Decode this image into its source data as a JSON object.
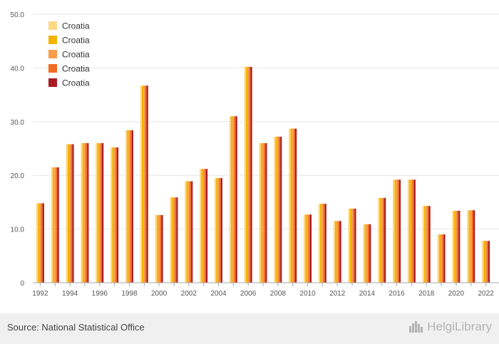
{
  "chart_data": {
    "type": "bar",
    "categories": [
      "1992",
      "1993",
      "1994",
      "1995",
      "1996",
      "1997",
      "1998",
      "1999",
      "2000",
      "2001",
      "2002",
      "2003",
      "2004",
      "2005",
      "2006",
      "2007",
      "2008",
      "2009",
      "2010",
      "2011",
      "2012",
      "2013",
      "2014",
      "2015",
      "2016",
      "2017",
      "2018",
      "2019",
      "2020",
      "2021",
      "2022"
    ],
    "x_tick_labels": [
      "1992",
      "1994",
      "1996",
      "1998",
      "2000",
      "2002",
      "2004",
      "2006",
      "2008",
      "2010",
      "2012",
      "2014",
      "2016",
      "2018",
      "2020",
      "2022"
    ],
    "y_tick_labels": [
      "0",
      "10.0",
      "20.0",
      "30.0",
      "40.0",
      "50.0"
    ],
    "ylim": [
      0,
      50
    ],
    "grid": true,
    "legend_position": "top-left",
    "series": [
      {
        "name": "Croatia",
        "color": "#fdd885",
        "values": [
          14.8,
          21.5,
          25.8,
          26.0,
          26.0,
          25.2,
          28.4,
          36.7,
          12.6,
          15.9,
          18.9,
          21.2,
          19.5,
          31.0,
          40.2,
          26.0,
          27.2,
          28.7,
          12.7,
          14.7,
          11.5,
          13.8,
          10.9,
          15.8,
          19.2,
          19.2,
          14.3,
          9.0,
          13.4,
          13.5,
          7.8
        ]
      },
      {
        "name": "Croatia",
        "color": "#f4b400",
        "values": [
          14.8,
          21.5,
          25.8,
          26.0,
          26.0,
          25.2,
          28.4,
          36.7,
          12.6,
          15.9,
          18.9,
          21.2,
          19.5,
          31.0,
          40.2,
          26.0,
          27.2,
          28.7,
          12.7,
          14.7,
          11.5,
          13.8,
          10.9,
          15.8,
          19.2,
          19.2,
          14.3,
          9.0,
          13.4,
          13.5,
          7.8
        ]
      },
      {
        "name": "Croatia",
        "color": "#f99c4c",
        "values": [
          14.8,
          21.5,
          25.8,
          26.0,
          26.0,
          25.2,
          28.4,
          36.7,
          12.6,
          15.9,
          18.9,
          21.2,
          19.5,
          31.0,
          40.2,
          26.0,
          27.2,
          28.7,
          12.7,
          14.7,
          11.5,
          13.8,
          10.9,
          15.8,
          19.2,
          19.2,
          14.3,
          9.0,
          13.4,
          13.5,
          7.8
        ]
      },
      {
        "name": "Croatia",
        "color": "#f26b23",
        "values": [
          14.8,
          21.5,
          25.8,
          26.0,
          26.0,
          25.2,
          28.4,
          36.7,
          12.6,
          15.9,
          18.9,
          21.2,
          19.5,
          31.0,
          40.2,
          26.0,
          27.2,
          28.7,
          12.7,
          14.7,
          11.5,
          13.8,
          10.9,
          15.8,
          19.2,
          19.2,
          14.3,
          9.0,
          13.4,
          13.5,
          7.8
        ]
      },
      {
        "name": "Croatia",
        "color": "#a81c24",
        "values": [
          14.8,
          21.5,
          25.8,
          26.0,
          26.0,
          25.2,
          28.4,
          36.7,
          12.6,
          15.9,
          18.9,
          21.2,
          19.5,
          31.0,
          40.2,
          26.0,
          27.2,
          28.7,
          12.7,
          14.7,
          11.5,
          13.8,
          10.9,
          15.8,
          19.2,
          19.2,
          14.3,
          9.0,
          13.4,
          13.5,
          7.8
        ]
      }
    ]
  },
  "footer": {
    "source": "Source: National Statistical Office",
    "logo_text": "HelgiLibrary",
    "logo_icon": "city-skyline-icon"
  }
}
